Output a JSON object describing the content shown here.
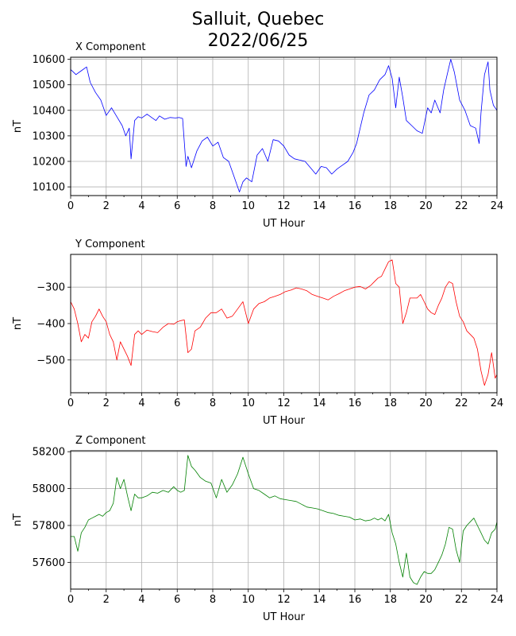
{
  "title_line1": "Salluit, Quebec",
  "title_line2": "2022/06/25",
  "chart_data": [
    {
      "type": "line",
      "title": "X Component",
      "xlabel": "UT Hour",
      "ylabel": "nT",
      "color": "#0000ff",
      "xlim": [
        0,
        24
      ],
      "ylim": [
        10066,
        10608
      ],
      "xticks": [
        0,
        2,
        4,
        6,
        8,
        10,
        12,
        14,
        16,
        18,
        20,
        22,
        24
      ],
      "yticks": [
        10100,
        10200,
        10300,
        10400,
        10500,
        10600
      ],
      "grid": true,
      "x": [
        0,
        0.3,
        0.6,
        0.9,
        1.1,
        1.4,
        1.7,
        2.0,
        2.3,
        2.6,
        2.9,
        3.1,
        3.3,
        3.4,
        3.6,
        3.8,
        4.0,
        4.3,
        4.6,
        4.8,
        5.0,
        5.3,
        5.6,
        5.9,
        6.1,
        6.3,
        6.5,
        6.6,
        6.8,
        7.1,
        7.4,
        7.7,
        8.0,
        8.3,
        8.6,
        8.9,
        9.2,
        9.5,
        9.7,
        9.9,
        10.2,
        10.5,
        10.8,
        11.1,
        11.4,
        11.7,
        12.0,
        12.3,
        12.6,
        12.9,
        13.2,
        13.5,
        13.8,
        14.1,
        14.4,
        14.7,
        15.0,
        15.3,
        15.6,
        15.9,
        16.1,
        16.3,
        16.5,
        16.8,
        17.1,
        17.4,
        17.7,
        17.9,
        18.1,
        18.3,
        18.5,
        18.7,
        18.9,
        19.2,
        19.5,
        19.8,
        20.1,
        20.3,
        20.5,
        20.8,
        21.0,
        21.2,
        21.4,
        21.6,
        21.9,
        22.2,
        22.5,
        22.8,
        23.0,
        23.1,
        23.3,
        23.5,
        23.6,
        23.8,
        24.0
      ],
      "y": [
        10560,
        10540,
        10555,
        10570,
        10510,
        10470,
        10440,
        10380,
        10410,
        10375,
        10340,
        10300,
        10330,
        10210,
        10360,
        10375,
        10370,
        10385,
        10370,
        10360,
        10378,
        10365,
        10372,
        10370,
        10372,
        10368,
        10180,
        10220,
        10175,
        10240,
        10280,
        10295,
        10260,
        10275,
        10215,
        10200,
        10140,
        10080,
        10120,
        10135,
        10120,
        10225,
        10250,
        10200,
        10285,
        10280,
        10260,
        10225,
        10210,
        10205,
        10200,
        10175,
        10150,
        10180,
        10175,
        10150,
        10170,
        10185,
        10200,
        10235,
        10270,
        10330,
        10390,
        10460,
        10480,
        10520,
        10540,
        10575,
        10525,
        10410,
        10530,
        10450,
        10360,
        10340,
        10320,
        10310,
        10410,
        10390,
        10440,
        10390,
        10480,
        10540,
        10600,
        10550,
        10440,
        10400,
        10340,
        10330,
        10270,
        10390,
        10540,
        10590,
        10480,
        10420,
        10400
      ]
    },
    {
      "type": "line",
      "title": "Y Component",
      "xlabel": "UT Hour",
      "ylabel": "nT",
      "color": "#ff0000",
      "xlim": [
        0,
        24
      ],
      "ylim": [
        -590,
        -210
      ],
      "xticks": [
        0,
        2,
        4,
        6,
        8,
        10,
        12,
        14,
        16,
        18,
        20,
        22,
        24
      ],
      "yticks": [
        -500,
        -400,
        -300
      ],
      "grid": true,
      "x": [
        0,
        0.2,
        0.4,
        0.6,
        0.8,
        1.0,
        1.2,
        1.4,
        1.6,
        1.8,
        2.0,
        2.2,
        2.4,
        2.6,
        2.8,
        3.0,
        3.2,
        3.4,
        3.6,
        3.8,
        4.0,
        4.3,
        4.6,
        4.9,
        5.2,
        5.5,
        5.8,
        6.0,
        6.2,
        6.4,
        6.6,
        6.8,
        7.0,
        7.3,
        7.6,
        7.9,
        8.2,
        8.5,
        8.8,
        9.1,
        9.4,
        9.7,
        10.0,
        10.3,
        10.6,
        10.9,
        11.2,
        11.5,
        11.8,
        12.1,
        12.4,
        12.7,
        13.0,
        13.3,
        13.6,
        13.9,
        14.2,
        14.5,
        14.8,
        15.1,
        15.4,
        15.7,
        16.0,
        16.3,
        16.6,
        16.9,
        17.1,
        17.3,
        17.5,
        17.7,
        17.9,
        18.1,
        18.3,
        18.5,
        18.7,
        18.9,
        19.1,
        19.3,
        19.5,
        19.7,
        19.9,
        20.1,
        20.3,
        20.5,
        20.7,
        20.9,
        21.1,
        21.3,
        21.5,
        21.7,
        21.9,
        22.1,
        22.3,
        22.5,
        22.7,
        22.9,
        23.1,
        23.3,
        23.5,
        23.7,
        23.9,
        24.0
      ],
      "y": [
        -340,
        -360,
        -400,
        -450,
        -430,
        -440,
        -395,
        -380,
        -360,
        -380,
        -395,
        -430,
        -450,
        -500,
        -450,
        -470,
        -490,
        -515,
        -430,
        -420,
        -430,
        -418,
        -422,
        -425,
        -410,
        -400,
        -402,
        -395,
        -392,
        -390,
        -480,
        -470,
        -420,
        -410,
        -385,
        -370,
        -370,
        -360,
        -385,
        -380,
        -360,
        -340,
        -400,
        -360,
        -345,
        -340,
        -330,
        -325,
        -320,
        -312,
        -308,
        -302,
        -305,
        -310,
        -320,
        -325,
        -330,
        -335,
        -325,
        -318,
        -310,
        -305,
        -300,
        -298,
        -305,
        -295,
        -285,
        -275,
        -270,
        -250,
        -230,
        -225,
        -290,
        -300,
        -400,
        -370,
        -330,
        -330,
        -330,
        -320,
        -340,
        -360,
        -370,
        -375,
        -350,
        -330,
        -300,
        -285,
        -290,
        -340,
        -380,
        -395,
        -420,
        -430,
        -440,
        -470,
        -530,
        -570,
        -540,
        -480,
        -550,
        -540
      ]
    },
    {
      "type": "line",
      "title": "Z Component",
      "xlabel": "UT Hour",
      "ylabel": "nT",
      "color": "#008000",
      "xlim": [
        0,
        24
      ],
      "ylim": [
        57455,
        58205
      ],
      "xticks": [
        0,
        2,
        4,
        6,
        8,
        10,
        12,
        14,
        16,
        18,
        20,
        22,
        24
      ],
      "yticks": [
        57600,
        57800,
        58000,
        58200
      ],
      "grid": true,
      "x": [
        0,
        0.2,
        0.4,
        0.6,
        0.8,
        1.0,
        1.2,
        1.4,
        1.6,
        1.8,
        2.0,
        2.2,
        2.4,
        2.6,
        2.8,
        3.0,
        3.2,
        3.4,
        3.6,
        3.8,
        4.0,
        4.3,
        4.6,
        4.9,
        5.2,
        5.5,
        5.8,
        6.0,
        6.2,
        6.4,
        6.6,
        6.8,
        7.0,
        7.3,
        7.6,
        7.9,
        8.2,
        8.5,
        8.8,
        9.1,
        9.4,
        9.7,
        10.0,
        10.3,
        10.6,
        10.9,
        11.2,
        11.5,
        11.8,
        12.1,
        12.4,
        12.7,
        13.0,
        13.3,
        13.6,
        13.9,
        14.2,
        14.5,
        14.8,
        15.1,
        15.4,
        15.7,
        16.0,
        16.3,
        16.6,
        16.9,
        17.1,
        17.3,
        17.5,
        17.7,
        17.9,
        18.1,
        18.3,
        18.5,
        18.7,
        18.9,
        19.1,
        19.3,
        19.5,
        19.7,
        19.9,
        20.1,
        20.3,
        20.5,
        20.7,
        20.9,
        21.1,
        21.3,
        21.5,
        21.7,
        21.9,
        22.1,
        22.3,
        22.5,
        22.7,
        22.9,
        23.1,
        23.3,
        23.5,
        23.7,
        23.9,
        24.0
      ],
      "y": [
        57740,
        57740,
        57660,
        57760,
        57790,
        57830,
        57840,
        57850,
        57860,
        57850,
        57870,
        57880,
        57920,
        58060,
        58000,
        58050,
        57960,
        57880,
        57970,
        57950,
        57950,
        57960,
        57980,
        57975,
        57990,
        57980,
        58010,
        57990,
        57980,
        57990,
        58180,
        58120,
        58100,
        58060,
        58040,
        58030,
        57950,
        58050,
        57980,
        58020,
        58080,
        58170,
        58080,
        58000,
        57990,
        57970,
        57950,
        57960,
        57945,
        57940,
        57935,
        57930,
        57915,
        57900,
        57895,
        57890,
        57880,
        57870,
        57865,
        57855,
        57850,
        57845,
        57830,
        57835,
        57825,
        57830,
        57840,
        57830,
        57840,
        57825,
        57860,
        57760,
        57700,
        57600,
        57520,
        57650,
        57520,
        57490,
        57480,
        57520,
        57550,
        57540,
        57540,
        57560,
        57600,
        57640,
        57700,
        57790,
        57780,
        57670,
        57600,
        57770,
        57800,
        57820,
        57840,
        57800,
        57760,
        57720,
        57700,
        57760,
        57780,
        57820
      ]
    }
  ]
}
